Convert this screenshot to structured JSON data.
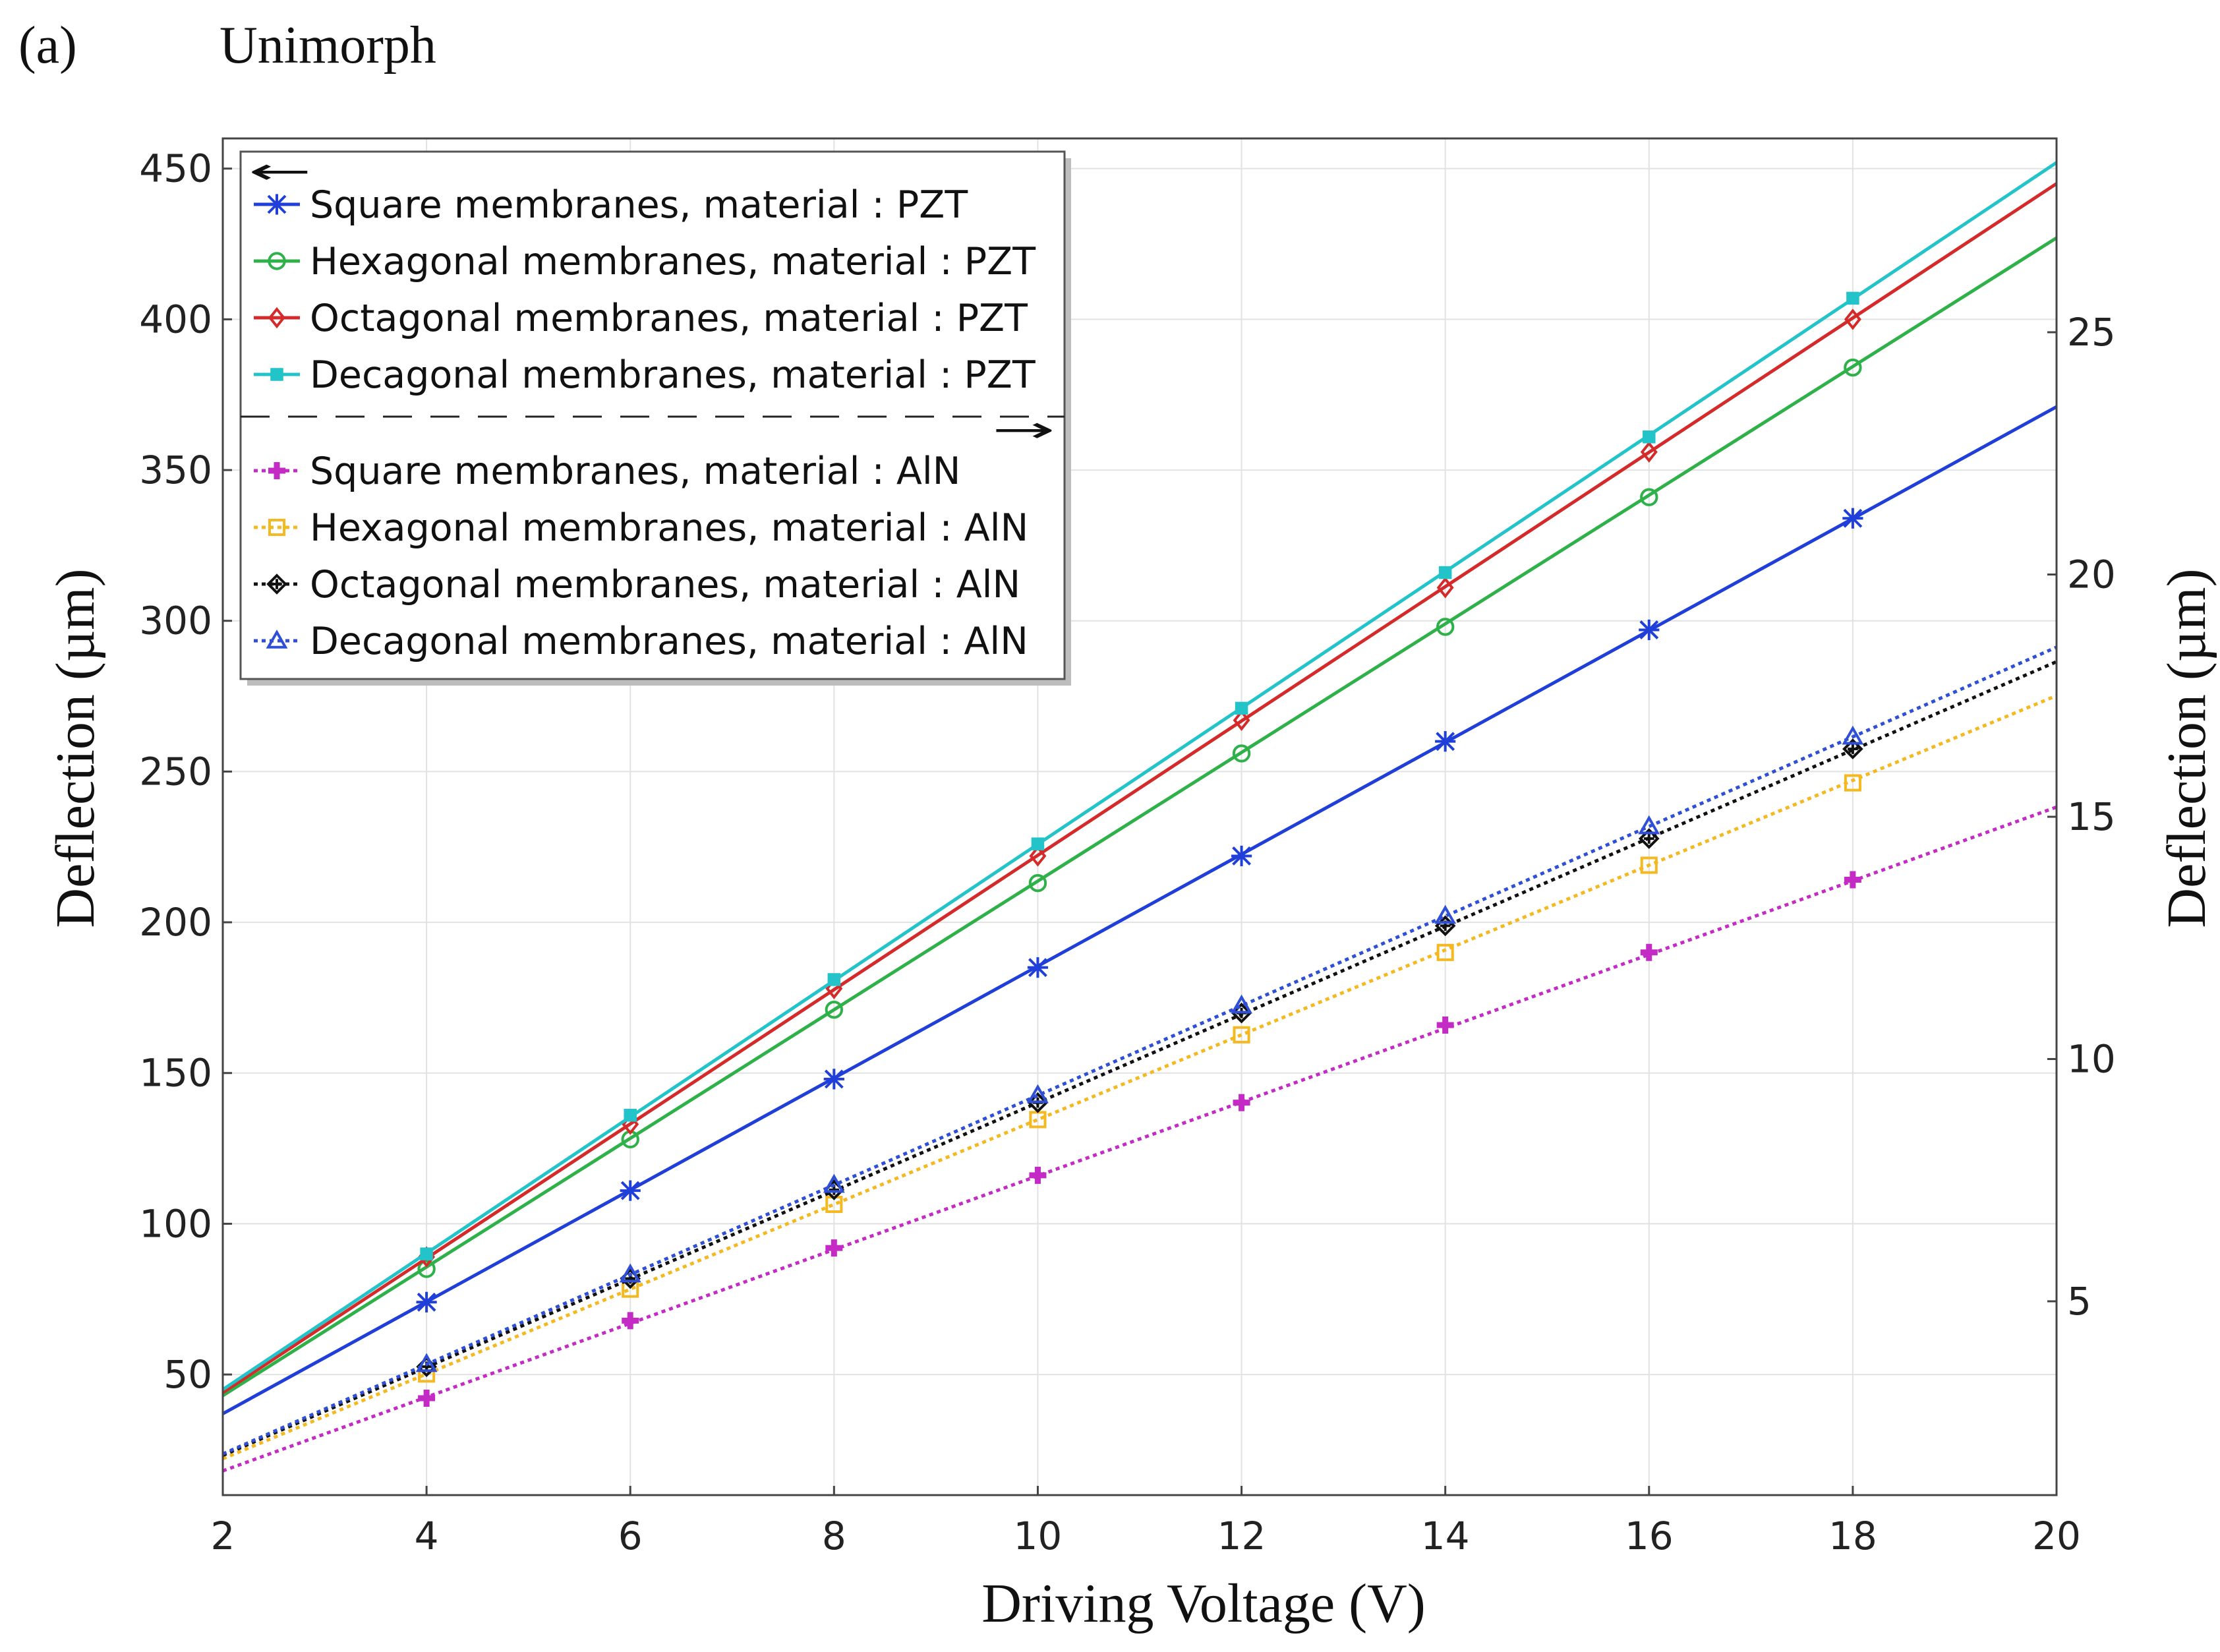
{
  "panel_label": "(a)",
  "chart_data": {
    "type": "line",
    "title": "Unimorph",
    "xlabel": "Driving Voltage (V)",
    "ylabel": "Deflection (µm)",
    "y2label": "Deflection (µm)",
    "xlim": [
      2,
      20
    ],
    "ylim": [
      10,
      460
    ],
    "y2lim": [
      1.0,
      29.0
    ],
    "xticks": [
      2,
      4,
      6,
      8,
      10,
      12,
      14,
      16,
      18,
      20
    ],
    "yticks": [
      50,
      100,
      150,
      200,
      250,
      300,
      350,
      400,
      450
    ],
    "y2ticks": [
      5,
      10,
      15,
      20,
      25
    ],
    "grid": true,
    "legend": "top-left",
    "legend_left_axis_arrow": "←",
    "legend_right_axis_arrow": "→",
    "marker_x": [
      4,
      6,
      8,
      10,
      12,
      14,
      16,
      18
    ],
    "series": [
      {
        "name": "Square membranes, material : PZT",
        "axis": "left",
        "style": "solid",
        "color": "#1f3fd8",
        "marker": "asterisk",
        "x": [
          2,
          20
        ],
        "values": [
          37,
          371
        ],
        "marker_values": [
          74,
          111,
          148,
          185,
          222,
          260,
          297,
          334
        ]
      },
      {
        "name": "Hexagonal membranes, material : PZT",
        "axis": "left",
        "style": "solid",
        "color": "#2fb14a",
        "marker": "circle",
        "x": [
          2,
          20
        ],
        "values": [
          43,
          427
        ],
        "marker_values": [
          85,
          128,
          171,
          213,
          256,
          298,
          341,
          384
        ]
      },
      {
        "name": "Octagonal membranes, material : PZT",
        "axis": "left",
        "style": "solid",
        "color": "#d42a2a",
        "marker": "diamond",
        "x": [
          2,
          20
        ],
        "values": [
          44,
          445
        ],
        "marker_values": [
          89,
          133,
          178,
          222,
          267,
          311,
          356,
          400
        ]
      },
      {
        "name": "Decagonal membranes, material : PZT",
        "axis": "left",
        "style": "solid",
        "color": "#22c4c9",
        "marker": "square",
        "x": [
          2,
          20
        ],
        "values": [
          45,
          452
        ],
        "marker_values": [
          90,
          136,
          181,
          226,
          271,
          316,
          361,
          407
        ]
      },
      {
        "name": "Square membranes, material : AlN",
        "axis": "right",
        "style": "dotted",
        "color": "#c42ac4",
        "marker": "plus",
        "x": [
          2,
          20
        ],
        "values": [
          1.5,
          15.2
        ],
        "marker_values": [
          3.0,
          4.6,
          6.1,
          7.6,
          9.1,
          10.7,
          12.2,
          13.7
        ]
      },
      {
        "name": "Hexagonal membranes, material : AlN",
        "axis": "right",
        "style": "dotted",
        "color": "#f4b820",
        "marker": "square-open",
        "x": [
          2,
          20
        ],
        "values": [
          1.75,
          17.5
        ],
        "marker_values": [
          3.5,
          5.25,
          7.0,
          8.75,
          10.5,
          12.2,
          14.0,
          15.7
        ]
      },
      {
        "name": "Octagonal membranes, material : AlN",
        "axis": "right",
        "style": "dotted",
        "color": "#111111",
        "marker": "diamond-cross",
        "x": [
          2,
          20
        ],
        "values": [
          1.82,
          18.2
        ],
        "marker_values": [
          3.65,
          5.47,
          7.3,
          9.1,
          10.95,
          12.75,
          14.55,
          16.4
        ]
      },
      {
        "name": "Decagonal membranes, material : AlN",
        "axis": "right",
        "style": "dotted",
        "color": "#2e4fd6",
        "marker": "triangle",
        "x": [
          2,
          20
        ],
        "values": [
          1.85,
          18.5
        ],
        "marker_values": [
          3.7,
          5.55,
          7.4,
          9.25,
          11.1,
          12.95,
          14.8,
          16.65
        ]
      }
    ]
  }
}
